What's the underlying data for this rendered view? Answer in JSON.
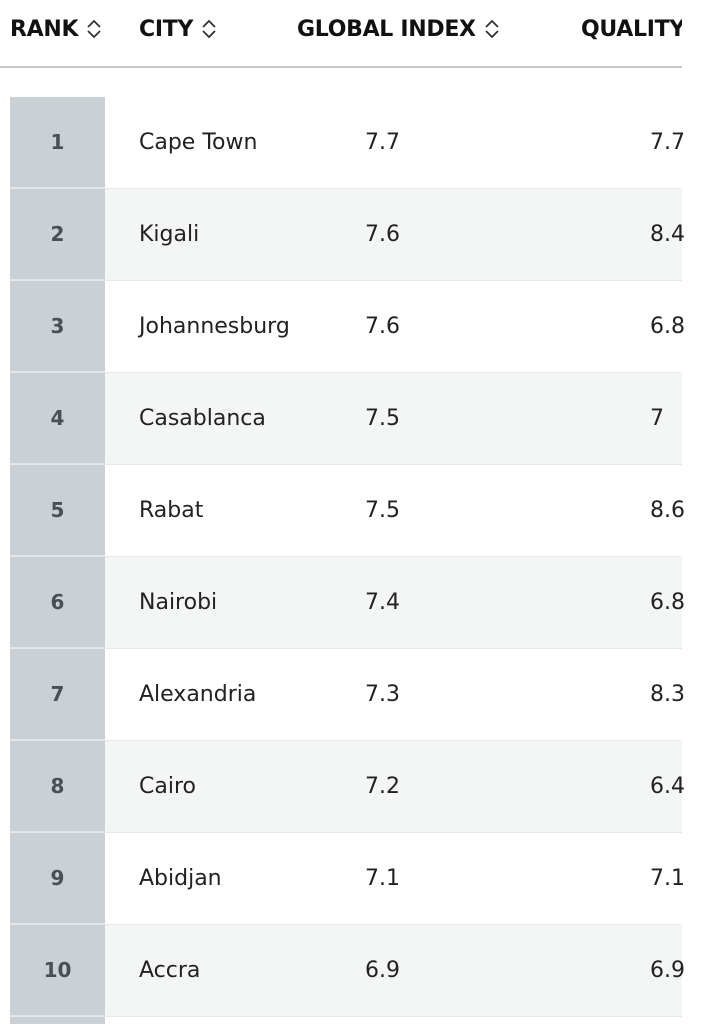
{
  "columns": {
    "rank": "RANK",
    "city": "CITY",
    "global_index": "GLOBAL INDEX",
    "quality": "QUALITY"
  },
  "icons": {
    "sort": "sort-up-down-chevron-icon"
  },
  "colors": {
    "rank_column_bg": "#c9d1d6",
    "alt_row_bg": "#f4f6f6",
    "header_divider": "#c4c6c8"
  },
  "rows": [
    {
      "rank": "1",
      "city": "Cape Town",
      "global_index": "7.7",
      "quality": "7.7"
    },
    {
      "rank": "2",
      "city": "Kigali",
      "global_index": "7.6",
      "quality": "8.4"
    },
    {
      "rank": "3",
      "city": "Johannesburg",
      "global_index": "7.6",
      "quality": "6.8"
    },
    {
      "rank": "4",
      "city": "Casablanca",
      "global_index": "7.5",
      "quality": "7"
    },
    {
      "rank": "5",
      "city": "Rabat",
      "global_index": "7.5",
      "quality": "8.6"
    },
    {
      "rank": "6",
      "city": "Nairobi",
      "global_index": "7.4",
      "quality": "6.8"
    },
    {
      "rank": "7",
      "city": "Alexandria",
      "global_index": "7.3",
      "quality": "8.3"
    },
    {
      "rank": "8",
      "city": "Cairo",
      "global_index": "7.2",
      "quality": "6.4"
    },
    {
      "rank": "9",
      "city": "Abidjan",
      "global_index": "7.1",
      "quality": "7.1"
    },
    {
      "rank": "10",
      "city": "Accra",
      "global_index": "6.9",
      "quality": "6.9"
    }
  ]
}
